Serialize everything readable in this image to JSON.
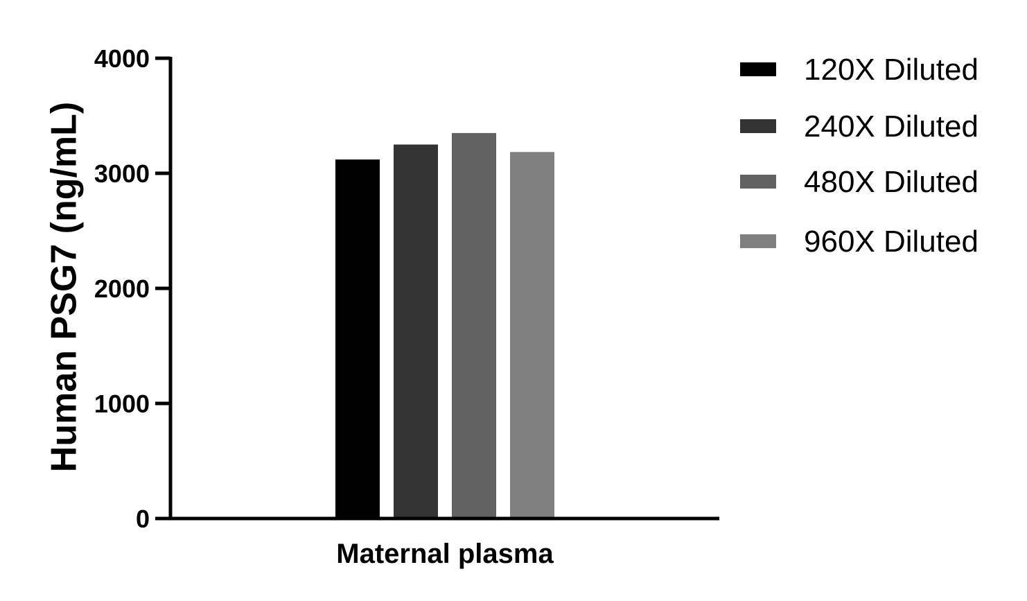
{
  "chart_data": {
    "type": "bar",
    "categories": [
      "Maternal plasma"
    ],
    "series": [
      {
        "name": "120X Diluted",
        "values": [
          3120
        ],
        "color": "#000000"
      },
      {
        "name": "240X Diluted",
        "values": [
          3250
        ],
        "color": "#333333"
      },
      {
        "name": "480X Diluted",
        "values": [
          3350
        ],
        "color": "#626262"
      },
      {
        "name": "960X Diluted",
        "values": [
          3185
        ],
        "color": "#808080"
      }
    ],
    "title": "",
    "xlabel": "",
    "ylabel": "Human PSG7 (ng/mL)",
    "ylim": [
      0,
      4000
    ],
    "yticks": [
      "0",
      "1000",
      "2000",
      "3000",
      "4000"
    ],
    "grid": false,
    "legend_position": "right"
  }
}
